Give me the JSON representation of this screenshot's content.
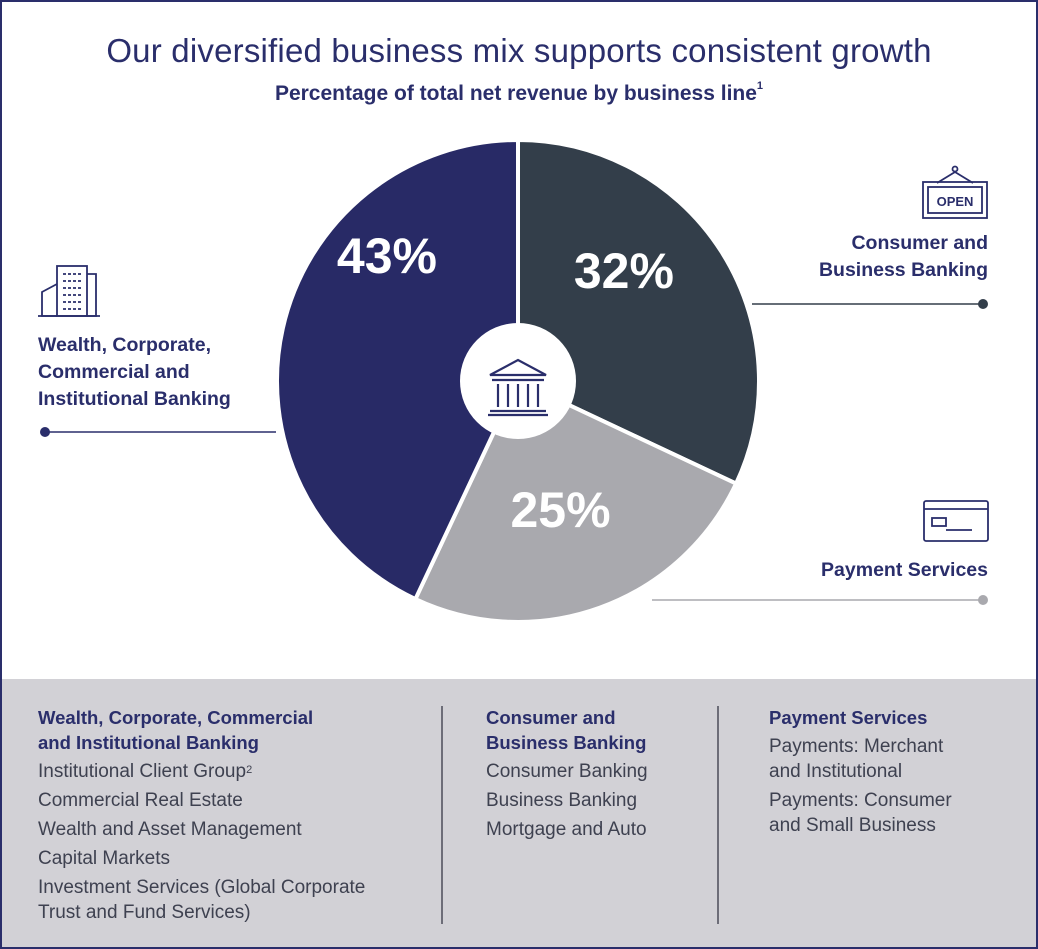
{
  "title": "Our diversified business mix supports consistent growth",
  "subtitle": "Percentage of total net revenue by business line",
  "subtitle_sup": "1",
  "chart_data": {
    "type": "pie",
    "title": "Our diversified business mix supports consistent growth",
    "subtitle": "Percentage of total net revenue by business line",
    "slices": [
      {
        "label": "Consumer and Business Banking",
        "value": 32,
        "display": "32%",
        "color": "#333e4a"
      },
      {
        "label": "Payment Services",
        "value": 25,
        "display": "25%",
        "color": "#a9a9ae"
      },
      {
        "label": "Wealth, Corporate, Commercial and Institutional Banking",
        "value": 43,
        "display": "43%",
        "color": "#282a66"
      }
    ],
    "start": "12 o'clock",
    "direction": "clockwise",
    "center_icon": "bank-building-icon"
  },
  "callouts": {
    "wealth": {
      "lines": [
        "Wealth, Corporate,",
        "Commercial and",
        "Institutional Banking"
      ],
      "icon": "office-building-icon",
      "dot_color": "#2a2e6b"
    },
    "consumer": {
      "lines": [
        "Consumer and",
        "Business Banking"
      ],
      "icon": "open-sign-icon",
      "icon_text": "OPEN",
      "dot_color": "#333e4a"
    },
    "payment": {
      "lines": [
        "Payment Services"
      ],
      "icon": "credit-card-icon",
      "dot_color": "#a9a9ae"
    }
  },
  "columns": [
    {
      "head": [
        "Wealth, Corporate, Commercial",
        "and Institutional Banking"
      ],
      "items": [
        "Institutional Client Group",
        "Commercial Real Estate",
        "Wealth and Asset Management",
        "Capital Markets",
        "Investment Services (Global Corporate",
        "Trust and Fund Services)"
      ],
      "item0_sup": "2"
    },
    {
      "head": [
        "Consumer and",
        "Business Banking"
      ],
      "items": [
        "Consumer Banking",
        "Business Banking",
        "Mortgage and Auto"
      ]
    },
    {
      "head": [
        "Payment Services"
      ],
      "items": [
        "Payments: Merchant",
        "and Institutional",
        "Payments: Consumer",
        "and Small Business"
      ]
    }
  ],
  "colors": {
    "navy": "#2a2e6b",
    "slate": "#333e4a",
    "gray": "#a9a9ae",
    "panel": "#d2d1d6"
  }
}
